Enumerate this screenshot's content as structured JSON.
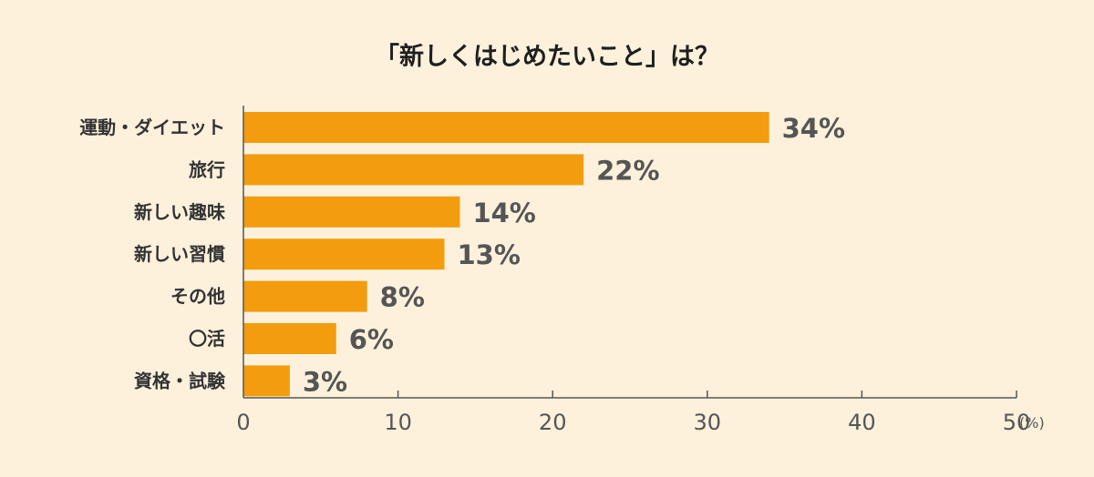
{
  "chart_data": {
    "type": "bar",
    "orientation": "horizontal",
    "title": "「新しくはじめたいこと」は？",
    "categories": [
      "運動・ダイエット",
      "旅行",
      "新しい趣味",
      "新しい習慣",
      "その他",
      "〇活",
      "資格・試験"
    ],
    "values": [
      34,
      22,
      14,
      13,
      8,
      6,
      3
    ],
    "value_labels": [
      "34%",
      "22%",
      "14%",
      "13%",
      "8%",
      "6%",
      "3%"
    ],
    "x_ticks": [
      "0",
      "10",
      "20",
      "30",
      "40",
      "50"
    ],
    "x_tick_values": [
      0,
      10,
      20,
      30,
      40,
      50
    ],
    "x_unit": "(%)",
    "xlim": [
      0,
      50
    ],
    "grid": false,
    "colors": {
      "bar": "#f39c0e",
      "axis": "#555555",
      "background": "#fdf1dc"
    }
  }
}
